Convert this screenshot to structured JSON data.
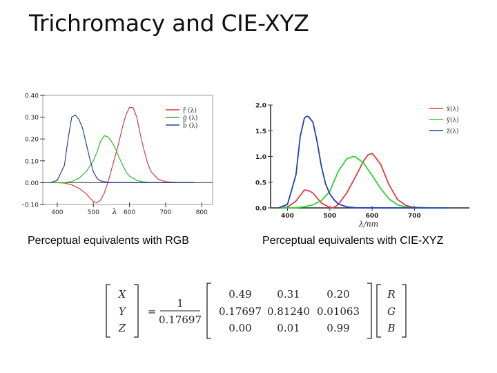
{
  "slide": {
    "title": "Trichromacy and CIE-XYZ",
    "caption_left": "Perceptual equivalents with RGB",
    "caption_right": "Perceptual equivalents with CIE-XYZ"
  },
  "chart_data": [
    {
      "type": "line",
      "title": "",
      "xlabel": "λ",
      "xlim": [
        360,
        830
      ],
      "ylim": [
        -0.1,
        0.4
      ],
      "x_ticks": [
        400,
        500,
        600,
        700,
        800
      ],
      "y_tick_labels": [
        "0.40",
        "0.30",
        "0.20",
        "0.10",
        "0.00",
        "−0.10"
      ],
      "y_ticks": [
        0.4,
        0.3,
        0.2,
        0.1,
        0.0,
        -0.1
      ],
      "grid": false,
      "legend": "top-right",
      "series": [
        {
          "name": "r̄ (λ)",
          "color": "#d23c3c",
          "x": [
            380,
            400,
            420,
            440,
            460,
            480,
            490,
            500,
            510,
            520,
            530,
            540,
            550,
            560,
            570,
            580,
            590,
            600,
            610,
            620,
            630,
            640,
            650,
            660,
            680,
            700,
            740,
            780
          ],
          "y": [
            0.0,
            0.0,
            -0.002,
            -0.01,
            -0.026,
            -0.05,
            -0.07,
            -0.086,
            -0.092,
            -0.08,
            -0.048,
            0.0,
            0.058,
            0.12,
            0.18,
            0.25,
            0.31,
            0.345,
            0.343,
            0.3,
            0.22,
            0.15,
            0.09,
            0.05,
            0.015,
            0.004,
            0.0,
            0.0
          ]
        },
        {
          "name": "ḡ (λ)",
          "color": "#2eb82e",
          "x": [
            380,
            400,
            420,
            440,
            460,
            480,
            500,
            510,
            520,
            530,
            540,
            550,
            560,
            570,
            580,
            590,
            600,
            620,
            640,
            660,
            700,
            780
          ],
          "y": [
            0.0,
            0.0,
            0.0,
            0.005,
            0.02,
            0.05,
            0.1,
            0.14,
            0.19,
            0.215,
            0.21,
            0.19,
            0.16,
            0.12,
            0.085,
            0.05,
            0.03,
            0.01,
            0.003,
            0.0,
            0.0,
            0.0
          ]
        },
        {
          "name": "b̄ (λ)",
          "color": "#2a3f9e",
          "x": [
            380,
            400,
            420,
            430,
            440,
            450,
            460,
            470,
            480,
            490,
            500,
            510,
            520,
            540,
            560,
            600,
            780
          ],
          "y": [
            0.0,
            0.01,
            0.08,
            0.2,
            0.3,
            0.31,
            0.29,
            0.25,
            0.18,
            0.11,
            0.05,
            0.02,
            0.008,
            0.002,
            0.0,
            0.0,
            0.0
          ]
        }
      ]
    },
    {
      "type": "line",
      "title": "",
      "xlabel": "λ/nm",
      "xlim": [
        360,
        830
      ],
      "ylim": [
        0,
        2.0
      ],
      "x_ticks": [
        400,
        500,
        600,
        700
      ],
      "y_tick_labels": [
        "2.0",
        "1.5",
        "1.0",
        "0.5",
        "0.0"
      ],
      "y_ticks": [
        2.0,
        1.5,
        1.0,
        0.5,
        0.0
      ],
      "grid": false,
      "legend": "top-right",
      "series": [
        {
          "name": "x̄(λ)",
          "color": "#e23b3b",
          "x": [
            380,
            400,
            420,
            440,
            450,
            460,
            480,
            500,
            510,
            520,
            540,
            560,
            580,
            590,
            600,
            620,
            640,
            660,
            680,
            700,
            740,
            780
          ],
          "y": [
            0.001,
            0.014,
            0.134,
            0.348,
            0.336,
            0.291,
            0.096,
            0.005,
            0.009,
            0.063,
            0.29,
            0.595,
            0.916,
            1.026,
            1.062,
            0.854,
            0.448,
            0.165,
            0.047,
            0.011,
            0.0,
            0.0
          ]
        },
        {
          "name": "ȳ(λ)",
          "color": "#2fd12f",
          "x": [
            380,
            400,
            420,
            440,
            460,
            480,
            500,
            520,
            540,
            555,
            560,
            580,
            600,
            620,
            640,
            660,
            680,
            700,
            740,
            780
          ],
          "y": [
            0.0,
            0.0,
            0.004,
            0.023,
            0.06,
            0.139,
            0.323,
            0.71,
            0.954,
            1.0,
            0.995,
            0.87,
            0.631,
            0.381,
            0.175,
            0.061,
            0.017,
            0.004,
            0.0,
            0.0
          ]
        },
        {
          "name": "z̄(λ)",
          "color": "#1f3fb5",
          "x": [
            380,
            400,
            420,
            430,
            440,
            445,
            450,
            460,
            470,
            480,
            490,
            500,
            510,
            520,
            540,
            560,
            600,
            780
          ],
          "y": [
            0.006,
            0.068,
            0.646,
            1.386,
            1.747,
            1.783,
            1.772,
            1.669,
            1.288,
            0.813,
            0.465,
            0.272,
            0.158,
            0.078,
            0.02,
            0.004,
            0.001,
            0.0
          ]
        }
      ]
    }
  ],
  "equation": {
    "lhs": [
      "X",
      "Y",
      "Z"
    ],
    "equals": "=",
    "numerator": "1",
    "denominator": "0.17697",
    "matrix": [
      [
        "0.49",
        "0.31",
        "0.20"
      ],
      [
        "0.17697",
        "0.81240",
        "0.01063"
      ],
      [
        "0.00",
        "0.01",
        "0.99"
      ]
    ],
    "rhs": [
      "R",
      "G",
      "B"
    ]
  }
}
